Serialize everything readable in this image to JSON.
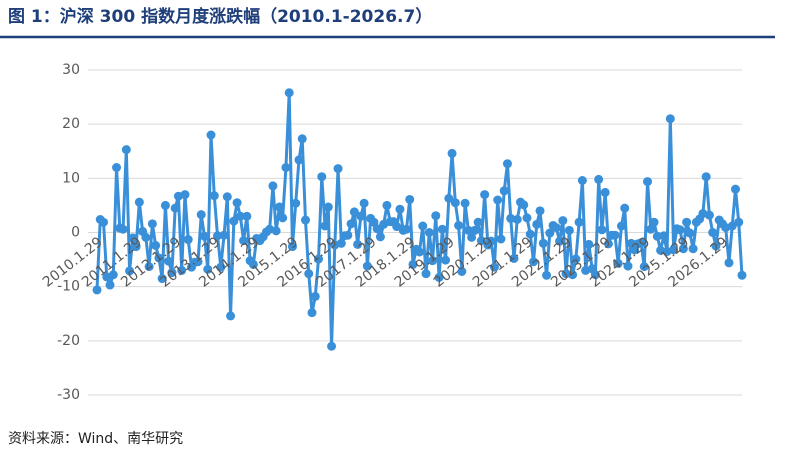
{
  "title": "图 1：沪深 300 指数月度涨跌幅（2010.1-2026.7）",
  "source": "资料来源：Wind、南华研究",
  "chart_data": {
    "type": "line",
    "color": "#3a8fd9",
    "grid": true,
    "ylim": [
      -30,
      30
    ],
    "yticks": [
      -30,
      -20,
      -10,
      0,
      10,
      20,
      30
    ],
    "categories": [
      "2010.1.29",
      null,
      null,
      null,
      null,
      null,
      null,
      null,
      null,
      null,
      null,
      null,
      "2011.1.29",
      null,
      null,
      null,
      null,
      null,
      null,
      null,
      null,
      null,
      null,
      null,
      "2012.1.29",
      null,
      null,
      null,
      null,
      null,
      null,
      null,
      null,
      null,
      null,
      null,
      "2013.1.29",
      null,
      null,
      null,
      null,
      null,
      null,
      null,
      null,
      null,
      null,
      null,
      "2014.1.29",
      null,
      null,
      null,
      null,
      null,
      null,
      null,
      null,
      null,
      null,
      null,
      "2015.1.29",
      null,
      null,
      null,
      null,
      null,
      null,
      null,
      null,
      null,
      null,
      null,
      "2016.1.29",
      null,
      null,
      null,
      null,
      null,
      null,
      null,
      null,
      null,
      null,
      null,
      "2017.1.29",
      null,
      null,
      null,
      null,
      null,
      null,
      null,
      null,
      null,
      null,
      null,
      "2018.1.29",
      null,
      null,
      null,
      null,
      null,
      null,
      null,
      null,
      null,
      null,
      null,
      "2019.1.29",
      null,
      null,
      null,
      null,
      null,
      null,
      null,
      null,
      null,
      null,
      null,
      "2020.1.29",
      null,
      null,
      null,
      null,
      null,
      null,
      null,
      null,
      null,
      null,
      null,
      "2021.1.29",
      null,
      null,
      null,
      null,
      null,
      null,
      null,
      null,
      null,
      null,
      null,
      "2022.1.29",
      null,
      null,
      null,
      null,
      null,
      null,
      null,
      null,
      null,
      null,
      null,
      "2023.1.29",
      null,
      null,
      null,
      null,
      null,
      null,
      null,
      null,
      null,
      null,
      null,
      "2024.1.29",
      null,
      null,
      null,
      null,
      null,
      null,
      null,
      null,
      null,
      null,
      null,
      "2025.1.29",
      null,
      null,
      null,
      null,
      null,
      null,
      null,
      null,
      null,
      null,
      null,
      "2026.1.29",
      null,
      null,
      null,
      null,
      null,
      null
    ],
    "values": [
      -10.6,
      2.4,
      1.9,
      -8.2,
      -9.7,
      -7.8,
      12.0,
      0.8,
      0.6,
      15.3,
      -7.1,
      -1.0,
      -2.6,
      5.6,
      0.2,
      -0.9,
      -6.3,
      1.6,
      -2.4,
      -4.7,
      -8.5,
      5.0,
      -5.3,
      -7.4,
      4.5,
      6.7,
      -7.0,
      7.0,
      -1.3,
      -6.4,
      -5.5,
      -5.4,
      3.3,
      -0.7,
      -6.8,
      18.0,
      6.8,
      -0.6,
      -6.4,
      -0.5,
      6.6,
      -15.4,
      2.1,
      5.5,
      3.0,
      -1.5,
      3.0,
      -5.2,
      -5.9,
      -1.1,
      -1.5,
      -0.8,
      0.1,
      0.6,
      8.6,
      0.3,
      4.7,
      2.7,
      12.0,
      25.8,
      -2.6,
      5.4,
      13.4,
      17.3,
      2.3,
      -7.6,
      -14.8,
      -11.8,
      -4.9,
      10.3,
      1.2,
      4.7,
      -21.0,
      -2.3,
      11.8,
      -2.0,
      -0.6,
      -0.5,
      1.6,
      3.8,
      -2.2,
      3.0,
      5.4,
      -6.2,
      2.6,
      1.9,
      0.7,
      -0.8,
      1.5,
      5.0,
      2.0,
      2.0,
      1.1,
      4.3,
      0.4,
      0.6,
      6.1,
      -5.9,
      -3.1,
      -3.6,
      1.2,
      -7.6,
      0.0,
      -5.2,
      3.1,
      -8.3,
      0.6,
      -5.1,
      6.3,
      14.6,
      5.5,
      1.3,
      -7.2,
      5.4,
      0.4,
      -0.9,
      0.4,
      1.9,
      -1.5,
      7.0,
      -2.3,
      -1.6,
      -6.4,
      6.0,
      -1.2,
      7.7,
      12.7,
      2.6,
      -4.8,
      2.4,
      5.6,
      5.1,
      2.7,
      -0.3,
      -5.4,
      1.5,
      4.0,
      -2.0,
      -7.9,
      -0.1,
      1.3,
      0.9,
      -1.6,
      2.2,
      -7.6,
      0.4,
      -7.8,
      -4.9,
      1.9,
      9.6,
      -7.0,
      -2.2,
      -6.7,
      -7.8,
      9.8,
      0.5,
      7.4,
      -2.1,
      -0.5,
      -0.5,
      -5.7,
      1.2,
      4.5,
      -6.2,
      -2.0,
      -3.2,
      -2.1,
      -1.9,
      -6.3,
      9.4,
      0.6,
      1.9,
      -0.7,
      -3.3,
      -0.6,
      -3.5,
      21.0,
      -3.2,
      0.7,
      0.5,
      -3.0,
      1.9,
      -0.1,
      -3.0,
      1.9,
      2.5,
      3.5,
      10.3,
      3.2,
      0.0,
      -2.5,
      2.3,
      1.6,
      0.9,
      -5.6,
      1.2,
      8.0,
      1.9,
      -7.9
    ]
  }
}
